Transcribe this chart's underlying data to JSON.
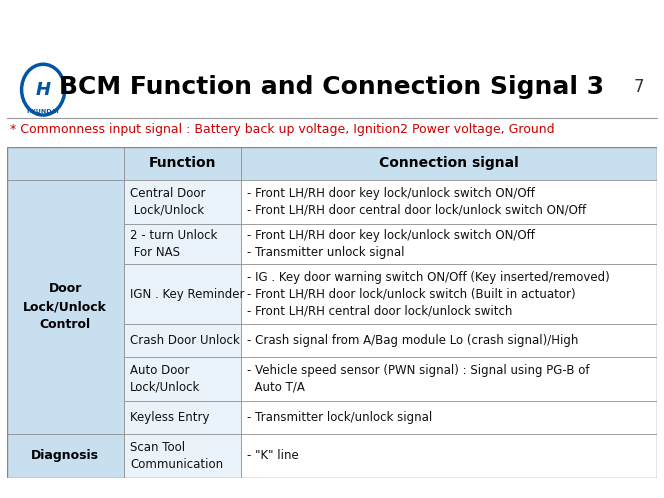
{
  "title": "BCM Function and Connection Signal 3",
  "page_number": "7",
  "subtitle": "* Commonness input signal : Battery back up voltage, Ignition2 Power voltage, Ground",
  "background_color": "#FFFFFF",
  "header_bg": "#000000",
  "slide_bg": "#FFFFFF",
  "table": {
    "col_headers": [
      "Function",
      "Connection signal"
    ],
    "header_bg": "#DDEEFF",
    "header_text_color": "#000000",
    "col1_bg": "#D6E8F7",
    "col2_bg": "#FFFFFF",
    "row_bg_alt": "#EEF5FC",
    "border_color": "#AAAAAA",
    "rows": [
      {
        "category": "Door\nLock/Unlock\nControl",
        "category_bold": true,
        "function": "Central Door\n Lock/Unlock",
        "connection": "- Front LH/RH door key lock/unlock switch ON/Off\n- Front LH/RH door central door lock/unlock switch ON/Off"
      },
      {
        "category": "",
        "category_bold": false,
        "function": "2 - turn Unlock\n For NAS",
        "connection": "- Front LH/RH door key lock/unlock switch ON/Off\n- Transmitter unlock signal"
      },
      {
        "category": "",
        "category_bold": false,
        "function": "IGN . Key Reminder",
        "connection": "- IG . Key door warning switch ON/Off (Key inserted/removed)\n- Front LH/RH door lock/unlock switch (Built in actuator)\n- Front LH/RH central door lock/unlock switch"
      },
      {
        "category": "",
        "category_bold": false,
        "function": "Crash Door Unlock",
        "connection": "- Crash signal from A/Bag module Lo (crash signal)/High"
      },
      {
        "category": "",
        "category_bold": false,
        "function": "Auto Door\nLock/Unlock",
        "connection": "- Vehicle speed sensor (PWN signal) : Signal using PG-B of\n  Auto T/A"
      },
      {
        "category": "",
        "category_bold": false,
        "function": "Keyless Entry",
        "connection": "- Transmitter lock/unlock signal"
      },
      {
        "category": "Diagnosis",
        "category_bold": true,
        "function": "Scan Tool\nCommunication",
        "connection": "- \"K\" line"
      }
    ]
  },
  "hyundai_logo_color": "#0055A5",
  "title_fontsize": 18,
  "subtitle_fontsize": 9,
  "table_header_fontsize": 10,
  "table_body_fontsize": 8.5
}
